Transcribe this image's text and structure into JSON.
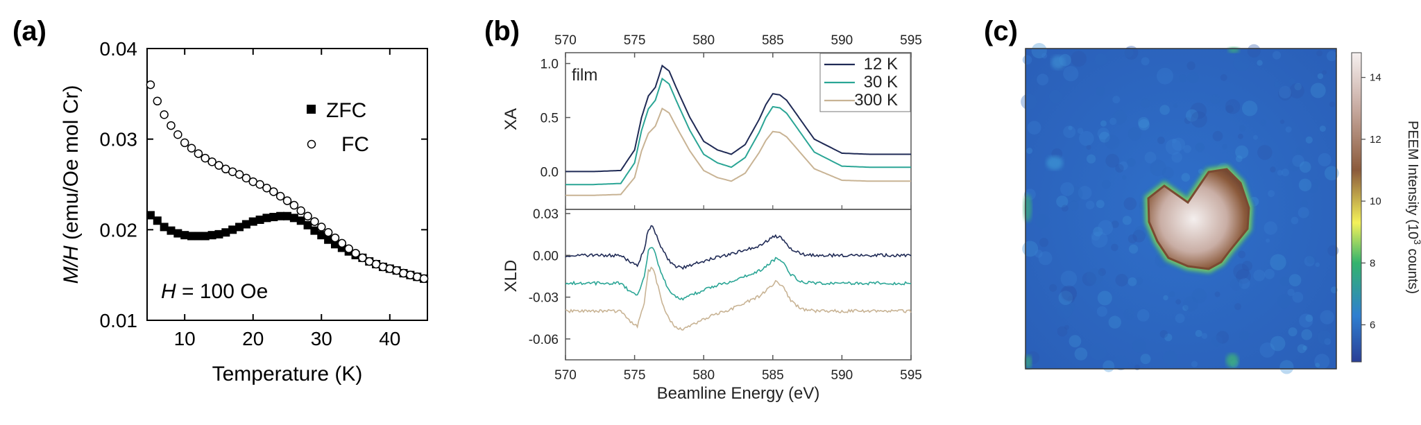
{
  "panel_labels": {
    "a": "(a)",
    "b": "(b)",
    "c": "(c)"
  },
  "chart_data": [
    {
      "id": "a",
      "type": "scatter",
      "xlabel": "Temperature (K)",
      "ylabel_italic": "M/H",
      "ylabel_rest": " (emu/Oe mol Cr)",
      "xlim": [
        4.5,
        45.5
      ],
      "ylim": [
        0.01,
        0.04
      ],
      "xticks": [
        10,
        20,
        30,
        40
      ],
      "yticks": [
        0.01,
        0.02,
        0.03,
        0.04
      ],
      "ytick_labels": [
        "0.01",
        "0.02",
        "0.03",
        "0.04"
      ],
      "annotation_italic": "H",
      "annotation_rest": " = 100 Oe",
      "legend_position": "top-right",
      "series": [
        {
          "name": "ZFC",
          "marker": "filled-square",
          "x": [
            5,
            6,
            7,
            8,
            9,
            10,
            11,
            12,
            13,
            14,
            15,
            16,
            17,
            18,
            19,
            20,
            21,
            22,
            23,
            24,
            25,
            26,
            27,
            28,
            29,
            30,
            31,
            32,
            33,
            34,
            35,
            36,
            37,
            38,
            39,
            40,
            41,
            42,
            43,
            44,
            45
          ],
          "y": [
            0.0216,
            0.021,
            0.0203,
            0.0199,
            0.0196,
            0.0194,
            0.0193,
            0.0193,
            0.0193,
            0.0194,
            0.0195,
            0.0197,
            0.02,
            0.0203,
            0.0206,
            0.0209,
            0.0211,
            0.0213,
            0.0214,
            0.0215,
            0.0215,
            0.0213,
            0.021,
            0.0205,
            0.0199,
            0.0194,
            0.0189,
            0.0184,
            0.018,
            0.0176,
            0.0172,
            0.0169,
            0.0165,
            0.0162,
            0.0159,
            0.0157,
            0.0155,
            0.0152,
            0.015,
            0.0148,
            0.0146
          ]
        },
        {
          "name": "FC",
          "marker": "open-circle",
          "x": [
            5,
            6,
            7,
            8,
            9,
            10,
            11,
            12,
            13,
            14,
            15,
            16,
            17,
            18,
            19,
            20,
            21,
            22,
            23,
            24,
            25,
            26,
            27,
            28,
            29,
            30,
            31,
            32,
            33,
            34,
            35,
            36,
            37,
            38,
            39,
            40,
            41,
            42,
            43,
            44,
            45
          ],
          "y": [
            0.036,
            0.0342,
            0.0327,
            0.0315,
            0.0305,
            0.0296,
            0.029,
            0.0284,
            0.0279,
            0.0275,
            0.0271,
            0.0267,
            0.0264,
            0.0261,
            0.0257,
            0.0253,
            0.025,
            0.0246,
            0.0242,
            0.0237,
            0.0232,
            0.0227,
            0.0221,
            0.0215,
            0.0209,
            0.0203,
            0.0197,
            0.0191,
            0.0185,
            0.0179,
            0.0174,
            0.0169,
            0.0165,
            0.0162,
            0.0159,
            0.0157,
            0.0155,
            0.0152,
            0.015,
            0.0148,
            0.0146
          ]
        }
      ]
    },
    {
      "id": "b",
      "type": "line",
      "xlabel": "Beamline Energy (eV)",
      "xlim": [
        570,
        595
      ],
      "xticks": [
        570,
        575,
        580,
        585,
        590,
        595
      ],
      "top": {
        "ylabel": "XA",
        "ylim": [
          -0.35,
          1.1
        ],
        "yticks": [
          0.0,
          0.5,
          1.0
        ],
        "ytick_labels": [
          "0.0",
          "0.5",
          "1.0"
        ],
        "annotation": "film"
      },
      "bottom": {
        "ylabel": "XLD",
        "ylim": [
          -0.075,
          0.033
        ],
        "yticks": [
          -0.06,
          -0.03,
          0.0,
          0.03
        ],
        "ytick_labels": [
          "-0.06",
          "-0.03",
          "0.00",
          "0.03"
        ]
      },
      "legend_position": "top-right",
      "series": [
        {
          "name": "12 K",
          "color": "#1f2a55",
          "xa_offset": 0.0,
          "xld_offset": 0.0
        },
        {
          "name": "30 K",
          "color": "#2aa595",
          "xa_offset": -0.12,
          "xld_offset": -0.02
        },
        {
          "name": "300 K",
          "color": "#c8b394",
          "xa_offset": -0.22,
          "xld_offset": -0.04
        }
      ],
      "xa_profile_x": [
        570,
        572,
        574,
        575,
        575.5,
        576,
        576.5,
        577,
        577.5,
        578,
        579,
        580,
        581,
        582,
        583,
        584,
        584.5,
        585,
        585.5,
        586,
        587,
        588,
        590,
        592,
        595
      ],
      "xa_profile_y": [
        0.0,
        0.0,
        0.01,
        0.2,
        0.5,
        0.7,
        0.78,
        0.98,
        0.93,
        0.78,
        0.5,
        0.28,
        0.2,
        0.16,
        0.25,
        0.48,
        0.62,
        0.72,
        0.71,
        0.66,
        0.48,
        0.3,
        0.17,
        0.16,
        0.16
      ],
      "xld_profile_x": [
        570,
        572,
        574,
        574.7,
        575.2,
        575.7,
        576,
        576.3,
        576.6,
        577,
        577.5,
        578,
        578.5,
        579,
        580,
        581,
        582,
        583,
        584,
        584.7,
        585.2,
        585.7,
        586.3,
        587,
        588,
        590,
        592,
        595
      ],
      "xld_profile_y": [
        0.0,
        0.0,
        0.0,
        -0.005,
        -0.007,
        0.004,
        0.019,
        0.021,
        0.014,
        0.004,
        -0.004,
        -0.008,
        -0.009,
        -0.007,
        -0.004,
        -0.001,
        0.001,
        0.004,
        0.007,
        0.011,
        0.014,
        0.012,
        0.005,
        0.001,
        0.0,
        0.0,
        0.0,
        0.0
      ]
    },
    {
      "id": "c",
      "type": "heatmap",
      "colorbar_label": "PEEM Intensity (10",
      "colorbar_label_sup": "3",
      "colorbar_label_end": " counts)",
      "colorbar_range": [
        4.8,
        14.8
      ],
      "colorbar_ticks": [
        6,
        8,
        10,
        12,
        14
      ],
      "colorbar_stops": [
        "#2a3f96",
        "#2f7fd0",
        "#33b36d",
        "#f4f15a",
        "#8b5a3b",
        "#c7aaa0",
        "#f6f0f0"
      ],
      "background_level": 5.5,
      "feature_level": 13.5
    }
  ]
}
